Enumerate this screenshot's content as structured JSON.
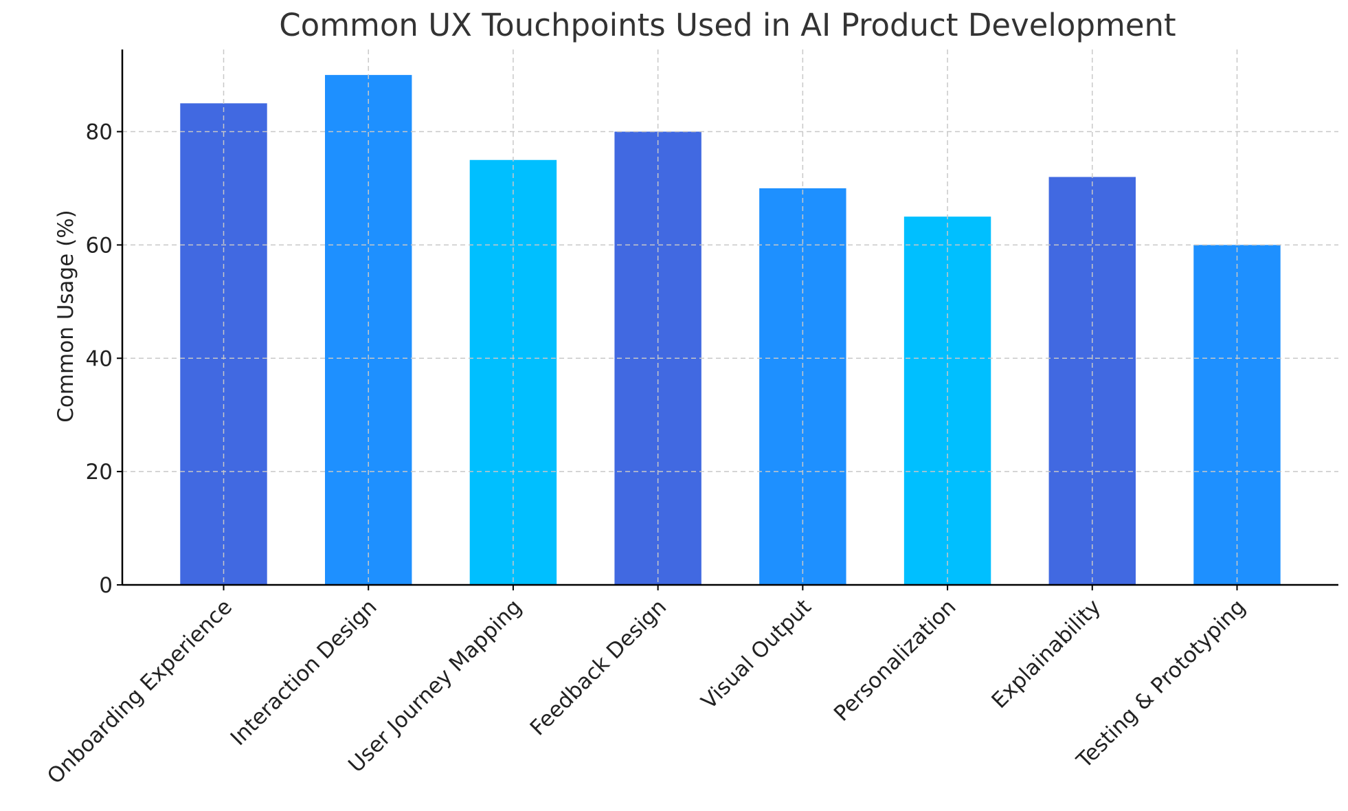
{
  "chart_data": {
    "type": "bar",
    "title": "Common UX Touchpoints Used in AI Product Development",
    "xlabel": "",
    "ylabel": "Common Usage (%)",
    "ylim": [
      0,
      94.5
    ],
    "yticks": [
      0,
      20,
      40,
      60,
      80
    ],
    "grid": true,
    "categories": [
      "Onboarding Experience",
      "Interaction Design",
      "User Journey Mapping",
      "Feedback Design",
      "Visual Output",
      "Personalization",
      "Explainability",
      "Testing & Prototyping"
    ],
    "values": [
      85,
      90,
      75,
      80,
      70,
      65,
      72,
      60
    ],
    "bar_colors": [
      "#4169E1",
      "#1E90FF",
      "#00BFFF",
      "#4169E1",
      "#1E90FF",
      "#00BFFF",
      "#4169E1",
      "#1E90FF"
    ]
  }
}
